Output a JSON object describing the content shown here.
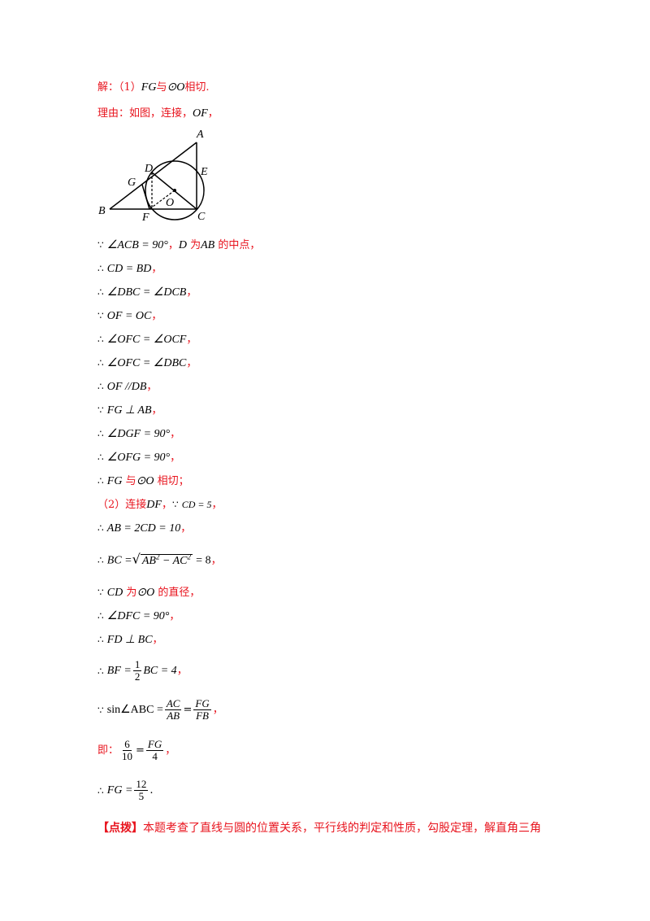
{
  "header": {
    "prefix": "解：（1）",
    "fg": "FG",
    "yu": "与",
    "odot": "⊙O",
    "conclusion": "相切."
  },
  "reason": {
    "text": "理由：如图，连接，",
    "of": "OF",
    "comma": "，"
  },
  "figure_labels": {
    "A": "A",
    "B": "B",
    "C": "C",
    "D": "D",
    "E": "E",
    "F": "F",
    "G": "G",
    "O": "O"
  },
  "steps": [
    {
      "sym": "∵",
      "math": "∠ACB = 90°",
      "tail_red": "，",
      "tail_math": "D",
      "tail_red2": "为",
      "tail_math2": "AB",
      "tail_red3": "的中点，"
    },
    {
      "sym": "∴",
      "math": "CD = BD",
      "tail_red": "，"
    },
    {
      "sym": "∴",
      "math": "∠DBC = ∠DCB",
      "tail_red": "，"
    },
    {
      "sym": "∵",
      "math": "OF = OC",
      "tail_red": "，"
    },
    {
      "sym": "∴",
      "math": "∠OFC = ∠OCF",
      "tail_red": "，"
    },
    {
      "sym": "∴",
      "math": "∠OFC = ∠DBC",
      "tail_red": "，"
    },
    {
      "sym": "∴",
      "math": "OF //DB",
      "tail_red": "，"
    },
    {
      "sym": "∵",
      "math": "FG ⊥ AB",
      "tail_red": "，"
    },
    {
      "sym": "∴",
      "math": "∠DGF = 90°",
      "tail_red": "，"
    },
    {
      "sym": "∴",
      "math": "∠OFG = 90°",
      "tail_red": "，"
    }
  ],
  "conclusion1": {
    "sym": "∴",
    "fg": "FG",
    "yu": "与",
    "odot": "⊙O",
    "text": "相切；"
  },
  "part2": {
    "label": "（2）连接",
    "df": "DF",
    "comma": "，",
    "sym": "∵",
    "math": "CD = 5",
    "tail": "，"
  },
  "ab_line": {
    "sym": "∴",
    "math": "AB = 2CD = 10",
    "tail": "，"
  },
  "bc_line": {
    "sym": "∴",
    "lhs": "BC =",
    "radicand": "AB",
    "minus": " − AC",
    "sup": "2",
    "rhs": "= 8",
    "tail": "，"
  },
  "diam_line": {
    "sym": "∵",
    "cd": "CD",
    "wei": "为",
    "odot": "⊙O",
    "text": "的直径，"
  },
  "dfc_line": {
    "sym": "∴",
    "math": "∠DFC = 90°",
    "tail": "，"
  },
  "fd_line": {
    "sym": "∴",
    "math": "FD ⊥ BC",
    "tail": "，"
  },
  "bf_line": {
    "sym": "∴",
    "lhs": "BF =",
    "num": "1",
    "den": "2",
    "rhs": "BC = 4",
    "tail": "，"
  },
  "sin_line": {
    "sym": "∵",
    "lhs": "sin∠ABC =",
    "n1": "AC",
    "d1": "AB",
    "eq": "=",
    "n2": "FG",
    "d2": "FB",
    "tail": "，"
  },
  "ji_line": {
    "label": "即：",
    "n1": "6",
    "d1": "10",
    "eq": "=",
    "n2": "FG",
    "d2": "4",
    "tail": "，"
  },
  "fg_line": {
    "sym": "∴",
    "lhs": "FG =",
    "num": "12",
    "den": "5",
    "tail": "."
  },
  "note": {
    "bracket": "【点拨】",
    "text": "本题考查了直线与圆的位置关系，平行线的判定和性质，勾股定理，解直角三角"
  },
  "colors": {
    "accent_red": "#e8141e",
    "text": "#000000"
  }
}
